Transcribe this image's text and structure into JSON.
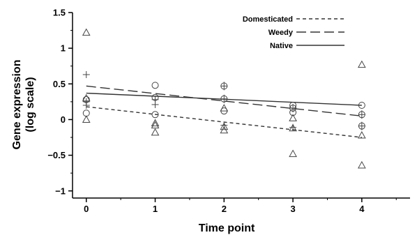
{
  "chart_data": {
    "type": "scatter",
    "xlabel": "Time point",
    "ylabel_lines": [
      "Gene expression",
      "(log scale)"
    ],
    "xlim": [
      -0.2,
      4.7
    ],
    "ylim": [
      -1.1,
      1.5
    ],
    "x_ticks": [
      "0",
      "1",
      "2",
      "3",
      "4"
    ],
    "y_ticks": [
      "1.5",
      "1",
      "0.5",
      "0",
      "−0.5",
      "−1"
    ],
    "grid": false,
    "legend_position": "top-right",
    "legend": [
      "Domesticated",
      "Weedy",
      "Native"
    ],
    "series": [
      {
        "name": "Domesticated",
        "line_style": "short-dash",
        "trend": [
          [
            0,
            0.18
          ],
          [
            4,
            -0.25
          ]
        ]
      },
      {
        "name": "Weedy",
        "line_style": "long-dash",
        "trend": [
          [
            0,
            0.47
          ],
          [
            4,
            0.05
          ]
        ]
      },
      {
        "name": "Native",
        "line_style": "solid",
        "trend": [
          [
            0,
            0.37
          ],
          [
            4,
            0.2
          ]
        ]
      }
    ],
    "points": [
      {
        "marker": "triangle",
        "x": 0,
        "y": 1.22
      },
      {
        "marker": "triangle",
        "x": 0,
        "y": 0.3
      },
      {
        "marker": "triangle",
        "x": 0,
        "y": 0.0
      },
      {
        "marker": "plus",
        "x": 0,
        "y": 0.63
      },
      {
        "marker": "plus",
        "x": 0,
        "y": 0.25
      },
      {
        "marker": "plus",
        "x": 0,
        "y": 0.2
      },
      {
        "marker": "circle",
        "x": 0,
        "y": 0.28
      },
      {
        "marker": "circle",
        "x": 0,
        "y": 0.09
      },
      {
        "marker": "circle",
        "x": 1,
        "y": 0.48
      },
      {
        "marker": "circle",
        "x": 1,
        "y": 0.31
      },
      {
        "marker": "circle",
        "x": 1,
        "y": 0.07
      },
      {
        "marker": "plus",
        "x": 1,
        "y": 0.28
      },
      {
        "marker": "plus",
        "x": 1,
        "y": 0.21
      },
      {
        "marker": "triangle",
        "x": 1,
        "y": -0.05
      },
      {
        "marker": "triangle",
        "x": 1,
        "y": -0.08
      },
      {
        "marker": "triangle",
        "x": 1,
        "y": -0.18
      },
      {
        "marker": "circleplus",
        "x": 2,
        "y": 0.47
      },
      {
        "marker": "circleplus",
        "x": 2,
        "y": 0.29
      },
      {
        "marker": "circle",
        "x": 2,
        "y": 0.12
      },
      {
        "marker": "triangle",
        "x": 2,
        "y": 0.16
      },
      {
        "marker": "plus",
        "x": 2,
        "y": -0.08
      },
      {
        "marker": "triangle",
        "x": 2,
        "y": -0.1
      },
      {
        "marker": "triangle",
        "x": 2,
        "y": -0.15
      },
      {
        "marker": "circle",
        "x": 3,
        "y": 0.2
      },
      {
        "marker": "circleplus",
        "x": 3,
        "y": 0.16
      },
      {
        "marker": "circle",
        "x": 3,
        "y": 0.1
      },
      {
        "marker": "triangle",
        "x": 3,
        "y": 0.02
      },
      {
        "marker": "plus",
        "x": 3,
        "y": -0.11
      },
      {
        "marker": "triangle",
        "x": 3,
        "y": -0.12
      },
      {
        "marker": "triangle",
        "x": 3,
        "y": -0.48
      },
      {
        "marker": "triangle",
        "x": 4,
        "y": 0.77
      },
      {
        "marker": "circle",
        "x": 4,
        "y": 0.2
      },
      {
        "marker": "circleplus",
        "x": 4,
        "y": 0.07
      },
      {
        "marker": "circleplus",
        "x": 4,
        "y": -0.09
      },
      {
        "marker": "triangle",
        "x": 4,
        "y": -0.22
      },
      {
        "marker": "triangle",
        "x": 4,
        "y": -0.64
      }
    ]
  }
}
